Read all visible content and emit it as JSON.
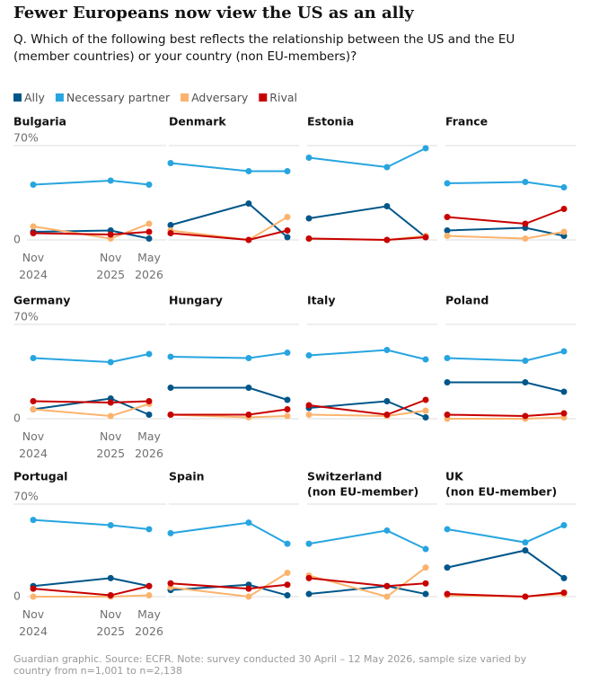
{
  "title": "Fewer Europeans now view the US as an ally",
  "subtitle": "Q. Which of the following best reflects the relationship between the US and the EU (member countries) or your country (non EU-members)?",
  "source": "Guardian graphic. Source: ECFR. Note: survey conducted 30 April – 12 May 2026, sample size varied by country from n=1,001 to n=2,138",
  "chart_data": [
    {
      "type": "line",
      "title": "Bulgaria",
      "x": [
        "Nov 2024",
        "Nov 2025",
        "May 2026"
      ],
      "ylim": [
        0,
        70
      ],
      "yticks": [
        0,
        {
          "value": 70,
          "label": "70%"
        }
      ],
      "series": [
        {
          "name": "Ally",
          "color": "#005689",
          "values": [
            6,
            7,
            1
          ]
        },
        {
          "name": "Necessary partner",
          "color": "#27a5e0",
          "values": [
            41,
            44,
            41
          ]
        },
        {
          "name": "Adversary",
          "color": "#fbb36d",
          "values": [
            10,
            1,
            12
          ]
        },
        {
          "name": "Rival",
          "color": "#c70000",
          "values": [
            5,
            4,
            6
          ]
        }
      ]
    },
    {
      "type": "line",
      "title": "Denmark",
      "x": [
        "Nov 2024",
        "Nov 2025",
        "May 2026"
      ],
      "ylim": [
        0,
        70
      ],
      "yticks": [
        0,
        70
      ],
      "series": [
        {
          "color": "#005689",
          "values": [
            11,
            27,
            2
          ]
        },
        {
          "color": "#27a5e0",
          "values": [
            57,
            51,
            51
          ]
        },
        {
          "color": "#fbb36d",
          "values": [
            7,
            0,
            17
          ]
        },
        {
          "color": "#c70000",
          "values": [
            5,
            0,
            7
          ]
        }
      ]
    },
    {
      "type": "line",
      "title": "Estonia",
      "x": [
        "Nov 2024",
        "Nov 2025",
        "May 2026"
      ],
      "ylim": [
        0,
        70
      ],
      "yticks": [
        0,
        70
      ],
      "series": [
        {
          "color": "#005689",
          "values": [
            16,
            25,
            2
          ]
        },
        {
          "color": "#27a5e0",
          "values": [
            61,
            54,
            68
          ]
        },
        {
          "color": "#fbb36d",
          "values": [
            1,
            0,
            3
          ]
        },
        {
          "color": "#c70000",
          "values": [
            1,
            0,
            2
          ]
        }
      ]
    },
    {
      "type": "line",
      "title": "France",
      "x": [
        "Nov 2024",
        "Nov 2025",
        "May 2026"
      ],
      "ylim": [
        0,
        70
      ],
      "yticks": [
        0,
        70
      ],
      "series": [
        {
          "color": "#005689",
          "values": [
            7,
            9,
            3
          ]
        },
        {
          "color": "#27a5e0",
          "values": [
            42,
            43,
            39
          ]
        },
        {
          "color": "#fbb36d",
          "values": [
            3,
            1,
            6
          ]
        },
        {
          "color": "#c70000",
          "values": [
            17,
            12,
            23
          ]
        }
      ]
    },
    {
      "type": "line",
      "title": "Germany",
      "x": [
        "Nov 2024",
        "Nov 2025",
        "May 2026"
      ],
      "ylim": [
        0,
        70
      ],
      "yticks": [
        0,
        {
          "value": 70,
          "label": "70%"
        }
      ],
      "series": [
        {
          "color": "#005689",
          "values": [
            7,
            15,
            3
          ]
        },
        {
          "color": "#27a5e0",
          "values": [
            45,
            42,
            48
          ]
        },
        {
          "color": "#fbb36d",
          "values": [
            7,
            2,
            11
          ]
        },
        {
          "color": "#c70000",
          "values": [
            13,
            12,
            13
          ]
        }
      ]
    },
    {
      "type": "line",
      "title": "Hungary",
      "x": [
        "Nov 2024",
        "Nov 2025",
        "May 2026"
      ],
      "ylim": [
        0,
        70
      ],
      "yticks": [
        0,
        70
      ],
      "series": [
        {
          "color": "#005689",
          "values": [
            23,
            23,
            14
          ]
        },
        {
          "color": "#27a5e0",
          "values": [
            46,
            45,
            49
          ]
        },
        {
          "color": "#fbb36d",
          "values": [
            3,
            1,
            2
          ]
        },
        {
          "color": "#c70000",
          "values": [
            3,
            3,
            7
          ]
        }
      ]
    },
    {
      "type": "line",
      "title": "Italy",
      "x": [
        "Nov 2024",
        "Nov 2025",
        "May 2026"
      ],
      "ylim": [
        0,
        70
      ],
      "yticks": [
        0,
        70
      ],
      "series": [
        {
          "color": "#005689",
          "values": [
            8,
            13,
            1
          ]
        },
        {
          "color": "#27a5e0",
          "values": [
            47,
            51,
            44
          ]
        },
        {
          "color": "#fbb36d",
          "values": [
            3,
            2,
            6
          ]
        },
        {
          "color": "#c70000",
          "values": [
            10,
            3,
            14
          ]
        }
      ]
    },
    {
      "type": "line",
      "title": "Poland",
      "x": [
        "Nov 2024",
        "Nov 2025",
        "May 2026"
      ],
      "ylim": [
        0,
        70
      ],
      "yticks": [
        0,
        70
      ],
      "series": [
        {
          "color": "#005689",
          "values": [
            27,
            27,
            20
          ]
        },
        {
          "color": "#27a5e0",
          "values": [
            45,
            43,
            50
          ]
        },
        {
          "color": "#fbb36d",
          "values": [
            0,
            0,
            1
          ]
        },
        {
          "color": "#c70000",
          "values": [
            3,
            2,
            4
          ]
        }
      ]
    },
    {
      "type": "line",
      "title": "Portugal",
      "x": [
        "Nov 2024",
        "Nov 2025",
        "May 2026"
      ],
      "ylim": [
        0,
        70
      ],
      "yticks": [
        0,
        {
          "value": 70,
          "label": "70%"
        }
      ],
      "series": [
        {
          "color": "#005689",
          "values": [
            8,
            14,
            8
          ]
        },
        {
          "color": "#27a5e0",
          "values": [
            58,
            54,
            51
          ]
        },
        {
          "color": "#fbb36d",
          "values": [
            0,
            0,
            1
          ]
        },
        {
          "color": "#c70000",
          "values": [
            6,
            1,
            8
          ]
        }
      ]
    },
    {
      "type": "line",
      "title": "Spain",
      "x": [
        "Nov 2024",
        "Nov 2025",
        "May 2026"
      ],
      "ylim": [
        0,
        70
      ],
      "yticks": [
        0,
        70
      ],
      "series": [
        {
          "color": "#005689",
          "values": [
            5,
            9,
            1
          ]
        },
        {
          "color": "#27a5e0",
          "values": [
            48,
            56,
            40
          ]
        },
        {
          "color": "#fbb36d",
          "values": [
            7,
            0,
            18
          ]
        },
        {
          "color": "#c70000",
          "values": [
            10,
            6,
            9
          ]
        }
      ]
    },
    {
      "type": "line",
      "title": "Switzerland",
      "subtitle": "(non EU-member)",
      "x": [
        "Nov 2024",
        "Nov 2025",
        "May 2026"
      ],
      "ylim": [
        0,
        70
      ],
      "yticks": [
        0,
        70
      ],
      "series": [
        {
          "color": "#005689",
          "values": [
            2,
            8,
            2
          ]
        },
        {
          "color": "#27a5e0",
          "values": [
            40,
            50,
            36
          ]
        },
        {
          "color": "#fbb36d",
          "values": [
            16,
            0,
            22
          ]
        },
        {
          "color": "#c70000",
          "values": [
            14,
            8,
            10
          ]
        }
      ]
    },
    {
      "type": "line",
      "title": "UK",
      "subtitle": "(non EU-member)",
      "x": [
        "Nov 2024",
        "Nov 2025",
        "May 2026"
      ],
      "ylim": [
        0,
        70
      ],
      "yticks": [
        0,
        70
      ],
      "series": [
        {
          "color": "#005689",
          "values": [
            22,
            35,
            14
          ]
        },
        {
          "color": "#27a5e0",
          "values": [
            51,
            41,
            54
          ]
        },
        {
          "color": "#fbb36d",
          "values": [
            1,
            0,
            2
          ]
        },
        {
          "color": "#c70000",
          "values": [
            2,
            0,
            3
          ]
        }
      ]
    }
  ]
}
